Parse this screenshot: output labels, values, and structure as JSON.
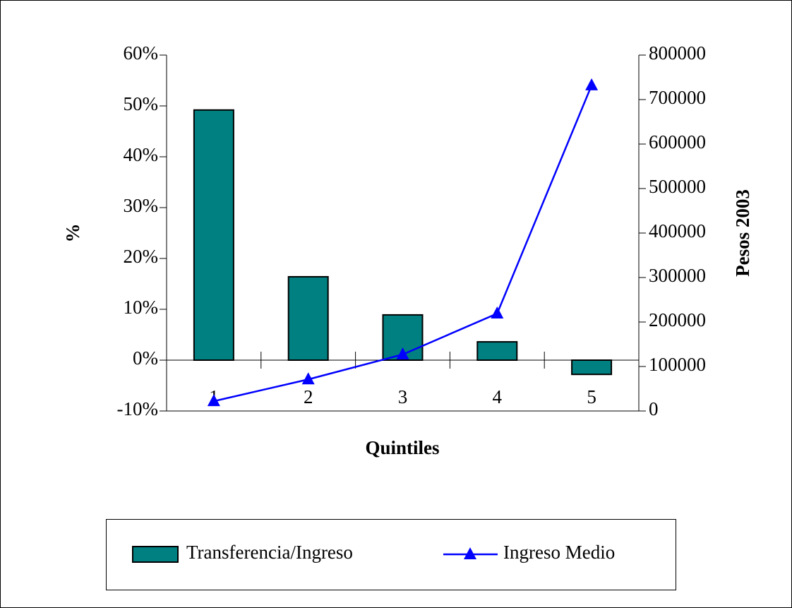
{
  "chart_data": {
    "type": "combo",
    "categories": [
      "1",
      "2",
      "3",
      "4",
      "5"
    ],
    "series": [
      {
        "name": "Transferencia/Ingreso",
        "type": "bar",
        "color": "#008080",
        "values": [
          49.2,
          16.4,
          8.9,
          3.6,
          -2.8
        ]
      },
      {
        "name": "Ingreso Medio",
        "type": "line",
        "axis": "y2",
        "color": "#0000ff",
        "values": [
          22000,
          71000,
          127000,
          219000,
          732000
        ]
      }
    ],
    "xlabel": "Quintiles",
    "ylabel": "%",
    "y2label": "Pesos 2003",
    "ylim": [
      -10,
      60
    ],
    "yticks": [
      {
        "value": -10,
        "label": "-10%"
      },
      {
        "value": 0,
        "label": "0%"
      },
      {
        "value": 10,
        "label": "10%"
      },
      {
        "value": 20,
        "label": "20%"
      },
      {
        "value": 30,
        "label": "30%"
      },
      {
        "value": 40,
        "label": "40%"
      },
      {
        "value": 50,
        "label": "50%"
      },
      {
        "value": 60,
        "label": "60%"
      }
    ],
    "y2lim": [
      0,
      800000
    ],
    "y2ticks": [
      0,
      100000,
      200000,
      300000,
      400000,
      500000,
      600000,
      700000,
      800000
    ],
    "legend": "bottom"
  }
}
